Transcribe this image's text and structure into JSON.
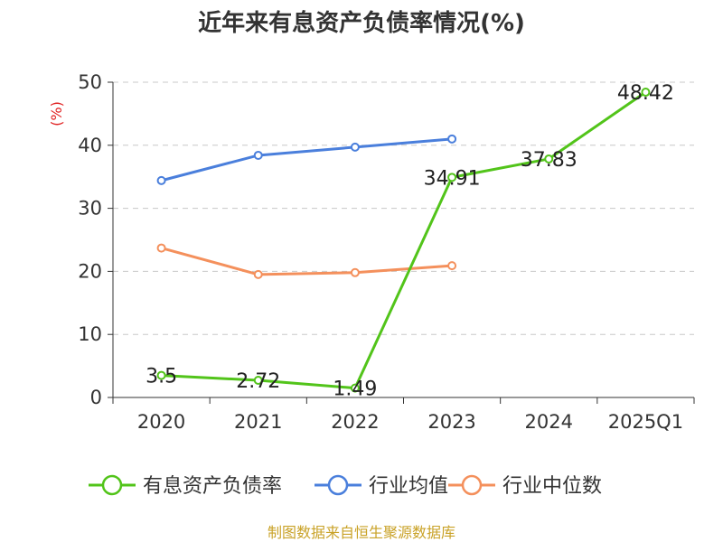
{
  "chart_data": {
    "type": "line",
    "title": "近年来有息资产负债率情况(%)",
    "ylabel": "(%)",
    "categories": [
      "2020",
      "2021",
      "2022",
      "2023",
      "2024",
      "2025Q1"
    ],
    "ylim": [
      0,
      50
    ],
    "yticks": [
      0,
      10,
      20,
      30,
      40,
      50
    ],
    "grid": true,
    "legend_position": "bottom",
    "series": [
      {
        "name": "有息资产负债率",
        "color": "#52c41a",
        "values": [
          3.5,
          2.72,
          1.49,
          34.91,
          37.83,
          48.42
        ],
        "labels": [
          "3.5",
          "2.72",
          "1.49",
          "34.91",
          "37.83",
          "48.42"
        ]
      },
      {
        "name": "行业均值",
        "color": "#4a7fdc",
        "values": [
          34.4,
          38.4,
          39.7,
          41.0,
          null,
          null
        ]
      },
      {
        "name": "行业中位数",
        "color": "#f4905c",
        "values": [
          23.7,
          19.5,
          19.8,
          20.9,
          null,
          null
        ]
      }
    ]
  },
  "source": "制图数据来自恒生聚源数据库"
}
